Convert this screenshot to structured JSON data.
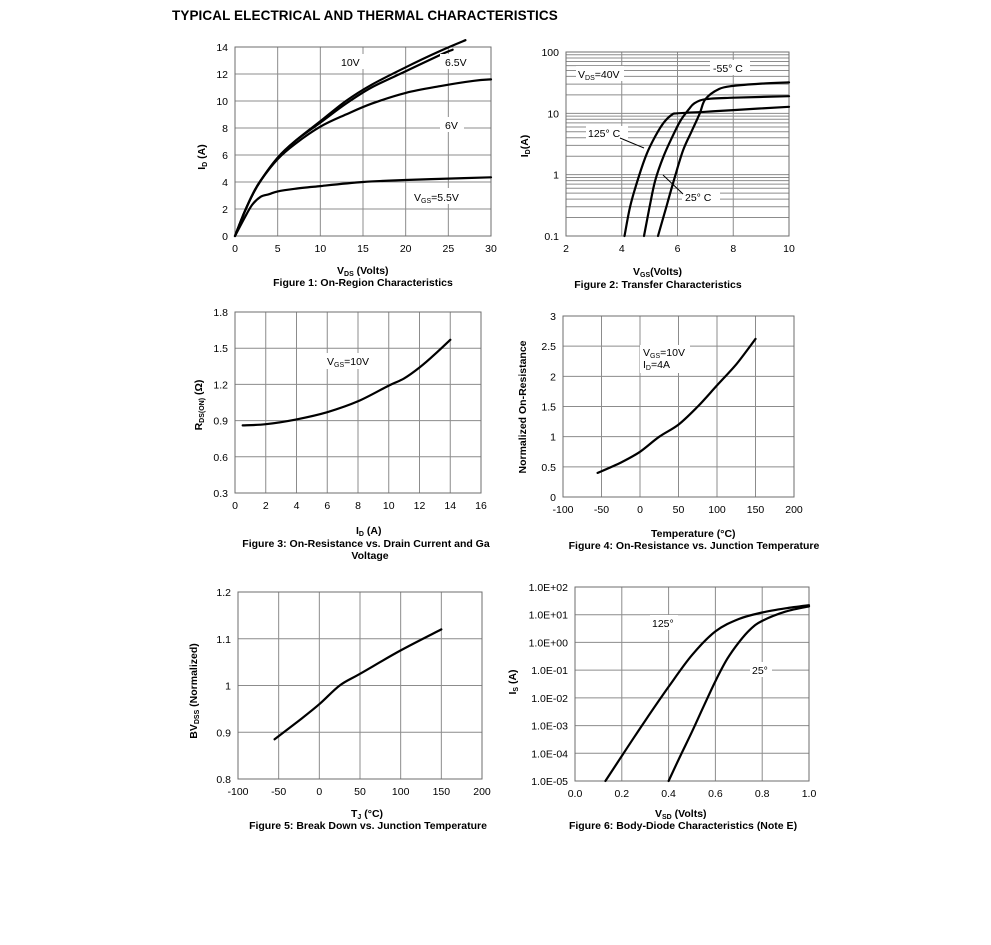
{
  "page_title": "TYPICAL ELECTRICAL AND THERMAL CHARACTERISTICS",
  "chart_data": [
    {
      "id": "fig1",
      "type": "line",
      "caption": "Figure 1: On-Region Characteristics",
      "xlabel": "V_DS (Volts)",
      "ylabel": "I_D (A)",
      "xlim": [
        0,
        30
      ],
      "ylim": [
        0,
        14
      ],
      "xticks": [
        "0",
        "5",
        "10",
        "15",
        "20",
        "25",
        "30"
      ],
      "yticks": [
        "0",
        "2",
        "4",
        "6",
        "8",
        "10",
        "12",
        "14"
      ],
      "grid": true,
      "series": [
        {
          "name": "10V",
          "x": [
            0,
            1,
            2,
            3,
            5,
            7,
            10,
            13,
            16,
            20,
            24,
            27
          ],
          "y": [
            0,
            1.6,
            3.0,
            4.1,
            5.8,
            7.0,
            8.5,
            10.0,
            11.2,
            12.5,
            13.7,
            14.5
          ]
        },
        {
          "name": "6.5V",
          "x": [
            0,
            1,
            2,
            3,
            5,
            7,
            10,
            13,
            16,
            20,
            24,
            25.5
          ],
          "y": [
            0,
            1.6,
            3.0,
            4.1,
            5.8,
            7.0,
            8.4,
            9.8,
            11.0,
            12.2,
            13.4,
            13.8
          ]
        },
        {
          "name": "6V",
          "x": [
            0,
            1,
            2,
            3,
            5,
            7,
            10,
            13,
            16,
            20,
            24,
            28,
            30
          ],
          "y": [
            0,
            1.6,
            3.0,
            4.1,
            5.7,
            6.8,
            8.1,
            9.0,
            9.8,
            10.6,
            11.1,
            11.5,
            11.6
          ]
        },
        {
          "name": "V_GS=5.5V",
          "x": [
            0,
            1,
            2,
            3,
            4,
            5,
            7,
            10,
            15,
            20,
            25,
            30
          ],
          "y": [
            0,
            1.2,
            2.3,
            2.9,
            3.1,
            3.3,
            3.5,
            3.7,
            4.0,
            4.15,
            4.25,
            4.35
          ]
        }
      ]
    },
    {
      "id": "fig2",
      "type": "line",
      "caption": "Figure 2: Transfer Characteristics",
      "xlabel": "V_GS(Volts)",
      "ylabel": "I_D(A)",
      "xlim": [
        2,
        10
      ],
      "ylim": [
        0.1,
        100
      ],
      "yscale": "log",
      "xticks": [
        "2",
        "4",
        "6",
        "8",
        "10"
      ],
      "yticks": [
        "0.1",
        "1",
        "10",
        "100"
      ],
      "grid": true,
      "annotations": [
        "V_DS=40V",
        "-55° C",
        "125° C",
        "25° C"
      ],
      "series": [
        {
          "name": "125° C",
          "x": [
            4.1,
            4.3,
            4.6,
            4.9,
            5.2,
            5.5,
            5.8,
            6.0,
            7.0,
            8.0,
            10.0
          ],
          "y": [
            0.1,
            0.3,
            0.9,
            2.2,
            4.2,
            7.0,
            9.5,
            10.0,
            10.6,
            11.3,
            12.8
          ]
        },
        {
          "name": "25° C",
          "x": [
            4.8,
            5.0,
            5.2,
            5.5,
            5.8,
            6.1,
            6.4,
            6.6,
            7.0,
            8.0,
            10.0
          ],
          "y": [
            0.1,
            0.3,
            0.8,
            2.0,
            4.0,
            7.5,
            11.5,
            14.5,
            17.0,
            18.0,
            19.0
          ]
        },
        {
          "name": "-55° C",
          "x": [
            5.3,
            5.6,
            5.9,
            6.2,
            6.5,
            6.8,
            7.0,
            7.5,
            8.0,
            9.0,
            10.0
          ],
          "y": [
            0.1,
            0.3,
            0.9,
            2.5,
            5.0,
            10.0,
            17.0,
            25.0,
            28.0,
            30.5,
            32.0
          ]
        }
      ]
    },
    {
      "id": "fig3",
      "type": "line",
      "caption": "Figure 3: On-Resistance vs. Drain Current and Ga",
      "caption2": "Voltage",
      "xlabel": "I_D (A)",
      "ylabel": "R_DS(ON) (Ω)",
      "xlim": [
        0,
        16
      ],
      "ylim": [
        0.3,
        1.8
      ],
      "xticks": [
        "0",
        "2",
        "4",
        "6",
        "8",
        "10",
        "12",
        "14",
        "16"
      ],
      "yticks": [
        "0.3",
        "0.6",
        "0.9",
        "1.2",
        "1.5",
        "1.8"
      ],
      "grid": true,
      "annotations": [
        "V_GS=10V"
      ],
      "series": [
        {
          "name": "V_GS=10V",
          "x": [
            0.5,
            2,
            4,
            6,
            8,
            10,
            11,
            12,
            13,
            14
          ],
          "y": [
            0.86,
            0.87,
            0.91,
            0.97,
            1.06,
            1.19,
            1.25,
            1.34,
            1.45,
            1.57
          ]
        }
      ]
    },
    {
      "id": "fig4",
      "type": "line",
      "caption": "Figure 4: On-Resistance vs. Junction Temperature",
      "xlabel": "Temperature (°C)",
      "ylabel": "Normalized On-Resistance",
      "xlim": [
        -100,
        200
      ],
      "ylim": [
        0,
        3
      ],
      "xticks": [
        "-100",
        "-50",
        "0",
        "50",
        "100",
        "150",
        "200"
      ],
      "yticks": [
        "0",
        "0.5",
        "1",
        "1.5",
        "2",
        "2.5",
        "3"
      ],
      "grid": true,
      "annotations": [
        "V_GS=10V",
        "I_D=4A"
      ],
      "series": [
        {
          "name": "V_GS=10V, I_D=4A",
          "x": [
            -55,
            -25,
            0,
            25,
            50,
            75,
            100,
            125,
            150
          ],
          "y": [
            0.4,
            0.57,
            0.75,
            1.0,
            1.2,
            1.5,
            1.85,
            2.2,
            2.62
          ]
        }
      ]
    },
    {
      "id": "fig5",
      "type": "line",
      "caption": "Figure 5: Break Down vs. Junction Temperature",
      "xlabel": "T_J (°C)",
      "ylabel": "BV_DSS (Normalized)",
      "xlim": [
        -100,
        200
      ],
      "ylim": [
        0.8,
        1.2
      ],
      "xticks": [
        "-100",
        "-50",
        "0",
        "50",
        "100",
        "150",
        "200"
      ],
      "yticks": [
        "0.8",
        "0.9",
        "1",
        "1.1",
        "1.2"
      ],
      "grid": true,
      "series": [
        {
          "name": "BV_DSS",
          "x": [
            -55,
            -25,
            0,
            25,
            50,
            100,
            150
          ],
          "y": [
            0.885,
            0.925,
            0.96,
            1.0,
            1.025,
            1.075,
            1.12
          ]
        }
      ]
    },
    {
      "id": "fig6",
      "type": "line",
      "caption": "Figure 6: Body-Diode Characteristics (Note E)",
      "xlabel": "V_SD (Volts)",
      "ylabel": "I_S (A)",
      "xlim": [
        0,
        1.0
      ],
      "ylim": [
        1e-05,
        100
      ],
      "yscale": "log",
      "xticks": [
        "0.0",
        "0.2",
        "0.4",
        "0.6",
        "0.8",
        "1.0"
      ],
      "yticks": [
        "1.0E-05",
        "1.0E-04",
        "1.0E-03",
        "1.0E-02",
        "1.0E-01",
        "1.0E+00",
        "1.0E+01",
        "1.0E+02"
      ],
      "grid": true,
      "series": [
        {
          "name": "125°",
          "x": [
            0.13,
            0.2,
            0.3,
            0.4,
            0.5,
            0.6,
            0.7,
            0.8,
            0.9,
            1.0
          ],
          "y": [
            1e-05,
            8e-05,
            0.0015,
            0.025,
            0.35,
            2.5,
            7.0,
            12.0,
            17.0,
            22.0
          ]
        },
        {
          "name": "25°",
          "x": [
            0.4,
            0.45,
            0.5,
            0.55,
            0.6,
            0.65,
            0.7,
            0.75,
            0.8,
            0.9,
            1.0
          ],
          "y": [
            1e-05,
            8e-05,
            0.0006,
            0.005,
            0.04,
            0.25,
            1.0,
            3.0,
            6.0,
            13.0,
            20.0
          ]
        }
      ]
    }
  ]
}
